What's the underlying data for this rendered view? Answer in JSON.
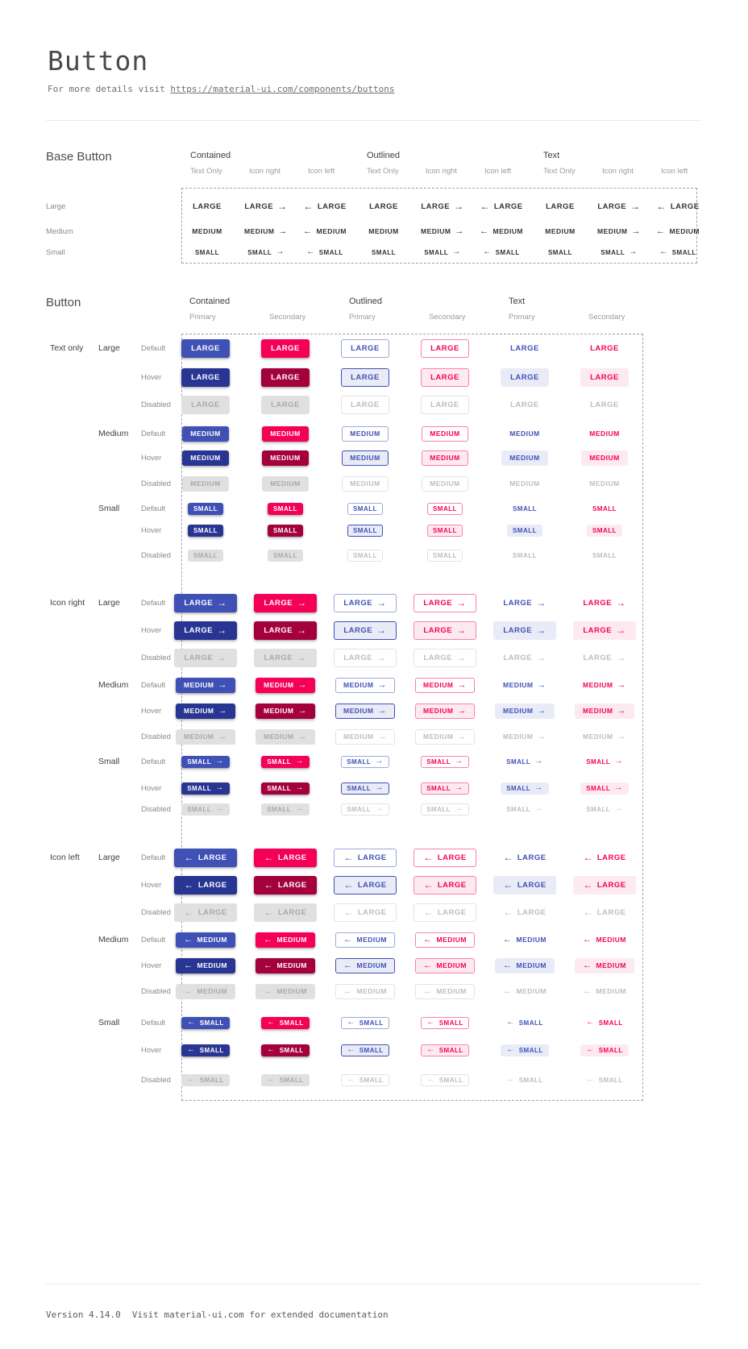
{
  "header": {
    "title": "Button",
    "subtitle_prefix": "For more details visit",
    "subtitle_link": "https://material-ui.com/components/buttons"
  },
  "base_section": {
    "title": "Base Button",
    "groups": [
      "Contained",
      "Outlined",
      "Text"
    ],
    "subcolumns": [
      "Text Only",
      "Icon right",
      "Icon left"
    ],
    "sizes": [
      {
        "label": "Large",
        "button_text": "LARGE"
      },
      {
        "label": "Medium",
        "button_text": "MEDIUM"
      },
      {
        "label": "Small",
        "button_text": "SMALL"
      }
    ]
  },
  "button_section": {
    "title": "Button",
    "groups": [
      "Contained",
      "Outlined",
      "Text"
    ],
    "subcolumns": [
      "Primary",
      "Secondary"
    ],
    "row_groups": [
      "Text only",
      "Icon right",
      "Icon left"
    ],
    "sizes": [
      {
        "label": "Large",
        "button_text": "LARGE"
      },
      {
        "label": "Medium",
        "button_text": "MEDIUM"
      },
      {
        "label": "Small",
        "button_text": "SMALL"
      }
    ],
    "states": [
      "Default",
      "Hover",
      "Disabled"
    ]
  },
  "icons": {
    "arrow_right": "→",
    "arrow_left": "←"
  },
  "colors": {
    "primary": "#3f51b5",
    "primary_dark": "#283593",
    "primary_tint": "#e9ebf6",
    "primary_border": "#9fa8da",
    "secondary": "#f50057",
    "secondary_dark": "#a3003c",
    "secondary_tint": "#fdeaf1",
    "secondary_border": "#fa80ab",
    "contained_disabled_bg": "#e0e0e0",
    "contained_disabled_text": "#a9a9a9",
    "disabled_text": "#bdbdbd",
    "disabled_border": "#e3e3e3",
    "base_button_text": "#32323c",
    "dashed_border": "#9aa0b5"
  },
  "footer": {
    "version": "Version 4.14.0",
    "note": "Visit material-ui.com for extended documentation"
  }
}
